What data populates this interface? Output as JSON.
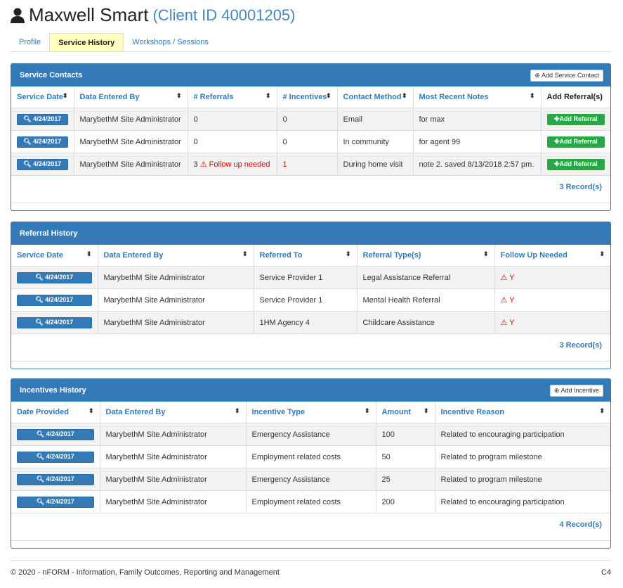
{
  "header": {
    "name": "Maxwell Smart",
    "client_id": "(Client ID 40001205)"
  },
  "tabs": [
    {
      "label": "Profile"
    },
    {
      "label": "Service History",
      "active": true
    },
    {
      "label": "Workshops / Sessions"
    }
  ],
  "service_contacts": {
    "title": "Service Contacts",
    "add_label": "Add Service Contact",
    "columns": [
      "Service Date",
      "Data Entered By",
      "# Referrals",
      "# Incentives",
      "Contact Method",
      "Most Recent Notes",
      "Add Referral(s)"
    ],
    "rows": [
      {
        "date": "4/24/2017",
        "by": "MarybethM Site Administrator",
        "referrals": "0",
        "flag": "",
        "incentives": "0",
        "method": "Email",
        "notes": "for max",
        "action": "Add Referral"
      },
      {
        "date": "4/24/2017",
        "by": "MarybethM Site Administrator",
        "referrals": "0",
        "flag": "",
        "incentives": "0",
        "method": "In community",
        "notes": "for agent 99",
        "action": "Add Referral"
      },
      {
        "date": "4/24/2017",
        "by": "MarybethM Site Administrator",
        "referrals": "3",
        "flag": "Follow up needed",
        "incentives": "1",
        "method": "During home visit",
        "notes": "note 2. saved 8/13/2018 2:57 pm.",
        "action": "Add Referral"
      }
    ],
    "records": "3 Record(s)"
  },
  "referral_history": {
    "title": "Referral History",
    "columns": [
      "Service Date",
      "Data Entered By",
      "Referred To",
      "Referral Type(s)",
      "Follow Up Needed"
    ],
    "rows": [
      {
        "date": "4/24/2017",
        "by": "MarybethM Site Administrator",
        "to": "Service Provider 1",
        "type": "Legal Assistance Referral",
        "follow": "Y"
      },
      {
        "date": "4/24/2017",
        "by": "MarybethM Site Administrator",
        "to": "Service Provider 1",
        "type": "Mental Health Referral",
        "follow": "Y"
      },
      {
        "date": "4/24/2017",
        "by": "MarybethM Site Administrator",
        "to": "1HM Agency 4",
        "type": "Childcare Assistance",
        "follow": "Y"
      }
    ],
    "records": "3 Record(s)"
  },
  "incentives_history": {
    "title": "Incentives History",
    "add_label": "Add Incentive",
    "columns": [
      "Date Provided",
      "Data Entered By",
      "Incentive Type",
      "Amount",
      "Incentive Reason"
    ],
    "rows": [
      {
        "date": "4/24/2017",
        "by": "MarybethM Site Administrator",
        "type": "Emergency Assistance",
        "amount": "100",
        "reason": "Related to encouraging participation"
      },
      {
        "date": "4/24/2017",
        "by": "MarybethM Site Administrator",
        "type": "Employment related costs",
        "amount": "50",
        "reason": "Related to program milestone"
      },
      {
        "date": "4/24/2017",
        "by": "MarybethM Site Administrator",
        "type": "Emergency Assistance",
        "amount": "25",
        "reason": "Related to program milestone"
      },
      {
        "date": "4/24/2017",
        "by": "MarybethM Site Administrator",
        "type": "Employment related costs",
        "amount": "200",
        "reason": "Related to encouraging participation"
      }
    ],
    "records": "4 Record(s)"
  },
  "footer": {
    "copyright": "© 2020 - nFORM - Information, Family Outcomes, Reporting and Management",
    "code": "C4"
  }
}
